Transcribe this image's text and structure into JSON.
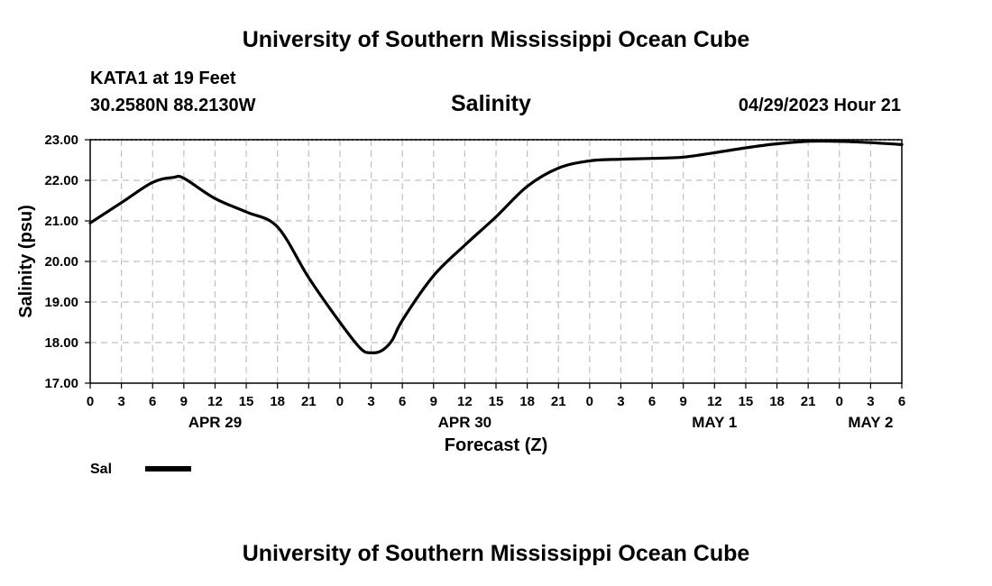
{
  "header": {
    "title": "University of Southern Mississippi Ocean Cube",
    "station": "KATA1 at 19 Feet",
    "coords": "30.2580N  88.2130W",
    "subtitle": "Salinity",
    "datetime": "04/29/2023 Hour 21"
  },
  "footer": {
    "title": "University of Southern Mississippi Ocean Cube"
  },
  "colors": {
    "line": "#000000",
    "grid": "#c0c0c0",
    "background": "#ffffff"
  },
  "chart_data": {
    "type": "line",
    "title": "Salinity",
    "xlabel": "Forecast (Z)",
    "ylabel": "Salinity (psu)",
    "ylim": [
      17.0,
      23.0
    ],
    "xlim": [
      0,
      78
    ],
    "x_unit": "hours since APR 29 00Z",
    "y_ticks": [
      "23.00",
      "22.00",
      "21.00",
      "20.00",
      "19.00",
      "18.00",
      "17.00"
    ],
    "x_tick_labels": [
      "0",
      "3",
      "6",
      "9",
      "12",
      "15",
      "18",
      "21",
      "0",
      "3",
      "6",
      "9",
      "12",
      "15",
      "18",
      "21",
      "0",
      "3",
      "6",
      "9",
      "12",
      "15",
      "18",
      "21",
      "0",
      "3",
      "6"
    ],
    "day_labels": [
      {
        "label": "APR 29",
        "hour": 12
      },
      {
        "label": "APR 30",
        "hour": 36
      },
      {
        "label": "MAY 1",
        "hour": 60
      },
      {
        "label": "MAY 2",
        "hour": 75
      }
    ],
    "grid": true,
    "legend": {
      "label": "Sal",
      "position": "bottom-left"
    },
    "series": [
      {
        "name": "Sal",
        "x": [
          0,
          3,
          6,
          8,
          9,
          12,
          15,
          18,
          21,
          24,
          26,
          27,
          28,
          29,
          30,
          33,
          36,
          39,
          42,
          45,
          48,
          51,
          54,
          57,
          60,
          63,
          66,
          69,
          72,
          75,
          78
        ],
        "values": [
          20.95,
          21.45,
          21.95,
          22.07,
          22.05,
          21.55,
          21.22,
          20.85,
          19.6,
          18.5,
          17.85,
          17.75,
          17.8,
          18.05,
          18.55,
          19.65,
          20.4,
          21.1,
          21.85,
          22.3,
          22.48,
          22.52,
          22.54,
          22.57,
          22.68,
          22.8,
          22.9,
          22.96,
          22.96,
          22.93,
          22.88
        ]
      }
    ]
  }
}
